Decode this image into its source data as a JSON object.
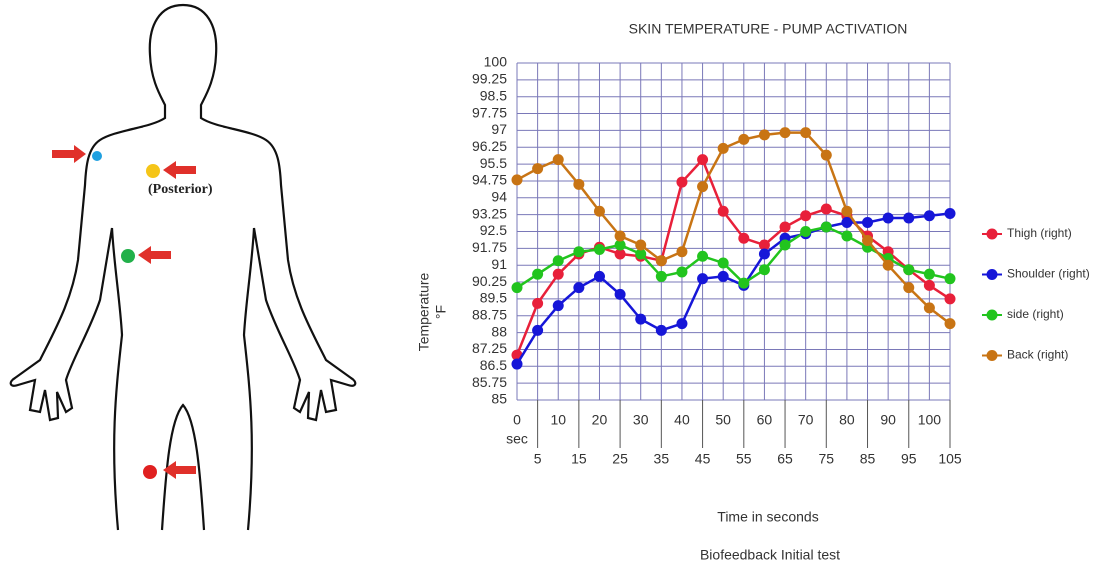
{
  "figure": {
    "annotation": "(Posterior)"
  },
  "chart_data": {
    "type": "line",
    "title": "SKIN TEMPERATURE - PUMP ACTIVATION",
    "ylabel": "Temperature",
    "yunit": "°F",
    "xlabel": "Time in seconds",
    "xunit": "sec",
    "caption": "Biofeedback Initial test",
    "x": [
      0,
      5,
      10,
      15,
      20,
      25,
      30,
      35,
      40,
      45,
      50,
      55,
      60,
      65,
      70,
      75,
      80,
      85,
      90,
      95,
      100,
      105
    ],
    "xlim": [
      0,
      105
    ],
    "xticks": [
      0,
      5,
      10,
      15,
      20,
      25,
      30,
      35,
      40,
      45,
      50,
      55,
      60,
      65,
      70,
      75,
      80,
      85,
      90,
      95,
      100,
      105
    ],
    "ylim": [
      85,
      100
    ],
    "yticks": [
      85,
      85.75,
      86.5,
      87.25,
      88,
      88.75,
      89.5,
      90.25,
      91,
      91.75,
      92.5,
      93.25,
      94,
      94.75,
      95.5,
      96.25,
      97,
      97.75,
      98.5,
      99.25,
      100
    ],
    "grid": true,
    "legend": "right",
    "series": [
      {
        "name": "Thigh (right)",
        "color": "#e8203a",
        "values": [
          87.0,
          89.3,
          90.6,
          91.5,
          91.8,
          91.5,
          91.4,
          91.2,
          94.7,
          95.7,
          93.4,
          92.2,
          91.9,
          92.7,
          93.2,
          93.5,
          93.2,
          92.3,
          91.6,
          90.8,
          90.1,
          89.5
        ]
      },
      {
        "name": "Shoulder (right)",
        "color": "#1616d8",
        "values": [
          86.6,
          88.1,
          89.2,
          90.0,
          90.5,
          89.7,
          88.6,
          88.1,
          88.4,
          90.4,
          90.5,
          90.1,
          91.5,
          92.2,
          92.4,
          92.7,
          92.9,
          92.9,
          93.1,
          93.1,
          93.2,
          93.3
        ]
      },
      {
        "name": "side (right)",
        "color": "#22c41e",
        "values": [
          90.0,
          90.6,
          91.2,
          91.6,
          91.7,
          91.9,
          91.5,
          90.5,
          90.7,
          91.4,
          91.1,
          90.2,
          90.8,
          91.9,
          92.5,
          92.7,
          92.3,
          91.8,
          91.3,
          90.8,
          90.6,
          90.4
        ]
      },
      {
        "name": "Back (right)",
        "color": "#c87414",
        "values": [
          94.8,
          95.3,
          95.7,
          94.6,
          93.4,
          92.3,
          91.9,
          91.2,
          91.6,
          94.5,
          96.2,
          96.6,
          96.8,
          96.9,
          96.9,
          95.9,
          93.4,
          92.1,
          91.0,
          90.0,
          89.1,
          88.4
        ]
      }
    ]
  }
}
